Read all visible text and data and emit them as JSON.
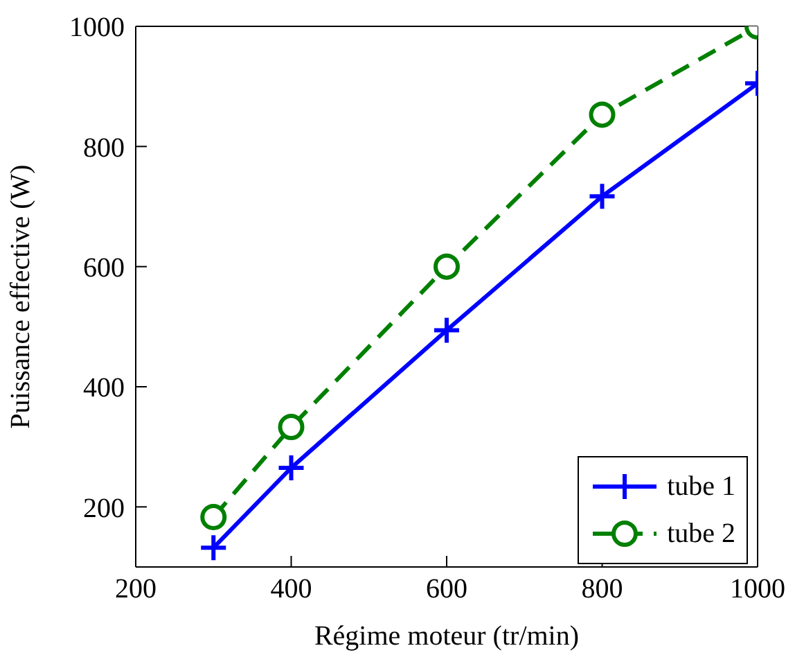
{
  "chart_data": {
    "type": "line",
    "xlabel": "Régime moteur (tr/min)",
    "ylabel": "Puissance effective (W)",
    "x": [
      300,
      400,
      600,
      800,
      1000
    ],
    "xlim": [
      200,
      1000
    ],
    "xticks": [
      200,
      400,
      600,
      800,
      1000
    ],
    "ylim": [
      100,
      1000
    ],
    "yticks": [
      200,
      400,
      600,
      800,
      1000
    ],
    "grid": false,
    "legend": "bottom right",
    "series": [
      {
        "name": "tube 1",
        "color": "#0000ff",
        "values": [
          132,
          265,
          494,
          717,
          905
        ],
        "marker": "cross",
        "line_style": "solid"
      },
      {
        "name": "tube 2",
        "color": "#008000",
        "values": [
          183,
          333,
          600,
          853,
          1000
        ],
        "marker": "circle",
        "line_style": "dashed"
      }
    ]
  }
}
